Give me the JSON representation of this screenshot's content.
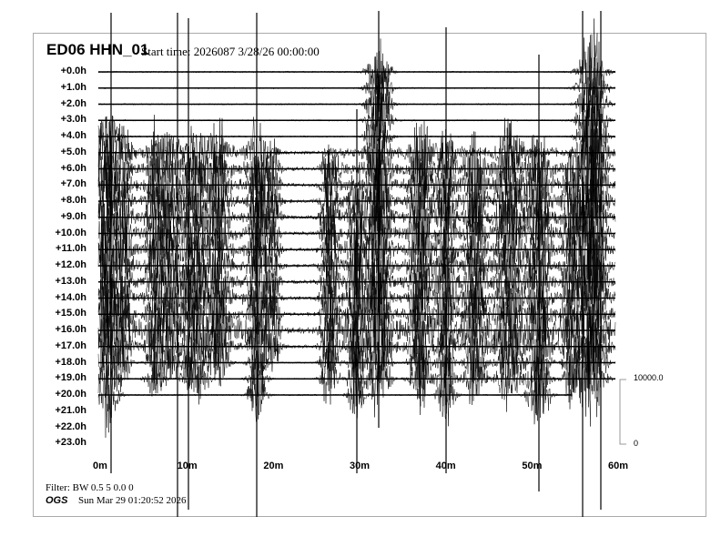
{
  "header": {
    "station": "ED06 HHN_01",
    "start_time": "Start time: 2026087  3/28/26 00:00:00"
  },
  "footer": {
    "filter": "Filter: BW 0.5 5 0.0 0",
    "org": "OGS",
    "generated": "Sun Mar 29 01:20:52 2026"
  },
  "chart_data": {
    "type": "line",
    "title": "ED06 HHN_01",
    "row_labels": [
      "+0.0h",
      "+1.0h",
      "+2.0h",
      "+3.0h",
      "+4.0h",
      "+5.0h",
      "+6.0h",
      "+7.0h",
      "+8.0h",
      "+9.0h",
      "+10.0h",
      "+11.0h",
      "+12.0h",
      "+13.0h",
      "+14.0h",
      "+15.0h",
      "+16.0h",
      "+17.0h",
      "+18.0h",
      "+19.0h",
      "+20.0h",
      "+21.0h",
      "+22.0h",
      "+23.0h"
    ],
    "x_ticks": [
      "0m",
      "10m",
      "20m",
      "30m",
      "40m",
      "50m",
      "60m"
    ],
    "xlim_minutes": [
      0,
      60
    ],
    "rows_with_data": 21,
    "last_row_end_minutes": 55,
    "scale": {
      "top": "10000.0",
      "bottom": "0"
    },
    "trace_color": "#000000"
  }
}
